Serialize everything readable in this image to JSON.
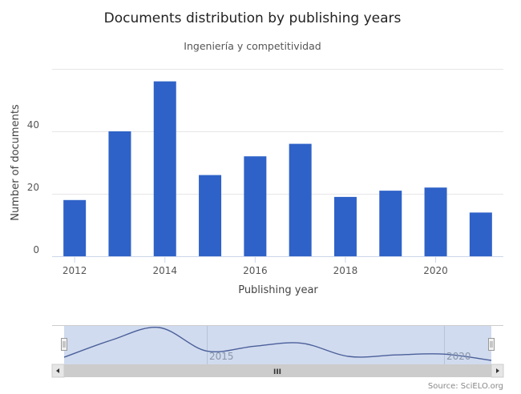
{
  "chart_data": {
    "type": "bar",
    "title": "Documents distribution by publishing years",
    "subtitle": "Ingeniería y competitividad",
    "xlabel": "Publishing year",
    "ylabel": "Number of documents",
    "categories": [
      2012,
      2013,
      2014,
      2015,
      2016,
      2017,
      2018,
      2019,
      2020,
      2021
    ],
    "values": [
      18,
      40,
      56,
      26,
      32,
      36,
      19,
      21,
      22,
      14
    ],
    "ylim": [
      0,
      60
    ],
    "yticks": [
      "0",
      "20",
      "40"
    ],
    "xticks": [
      "2012",
      "2014",
      "2016",
      "2018",
      "2020"
    ],
    "grid": true,
    "legend": "none",
    "bar_color": "#2f62c8",
    "navigator": {
      "labels": [
        "2015",
        "2020"
      ],
      "series_color": "#4a5f9a",
      "mask_color": "#c9d5ec",
      "scrollbar_grip": "III"
    },
    "credits": "Source: SciELO.org"
  }
}
